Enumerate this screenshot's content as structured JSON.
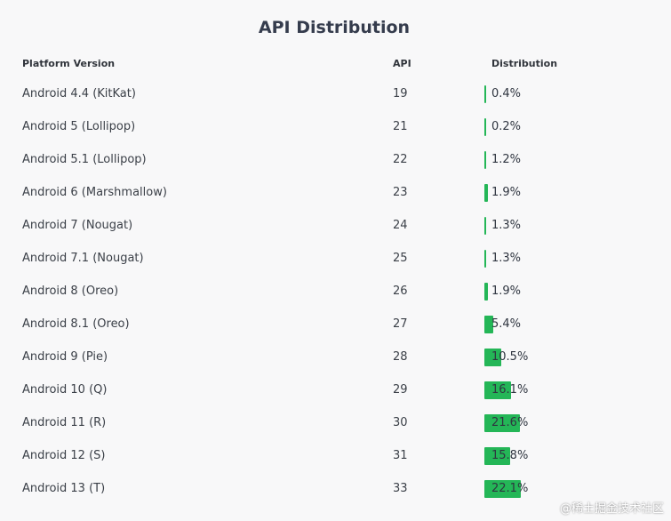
{
  "chart_data": {
    "type": "table",
    "title": "API Distribution",
    "columns": [
      "Platform Version",
      "API",
      "Distribution"
    ],
    "rows": [
      {
        "version": "Android 4.4 (KitKat)",
        "api": "19",
        "distribution": 0.4,
        "label": "0.4%"
      },
      {
        "version": "Android 5 (Lollipop)",
        "api": "21",
        "distribution": 0.2,
        "label": "0.2%"
      },
      {
        "version": "Android 5.1 (Lollipop)",
        "api": "22",
        "distribution": 1.2,
        "label": "1.2%"
      },
      {
        "version": "Android 6 (Marshmallow)",
        "api": "23",
        "distribution": 1.9,
        "label": "1.9%"
      },
      {
        "version": "Android 7 (Nougat)",
        "api": "24",
        "distribution": 1.3,
        "label": "1.3%"
      },
      {
        "version": "Android 7.1 (Nougat)",
        "api": "25",
        "distribution": 1.3,
        "label": "1.3%"
      },
      {
        "version": "Android 8 (Oreo)",
        "api": "26",
        "distribution": 1.9,
        "label": "1.9%"
      },
      {
        "version": "Android 8.1 (Oreo)",
        "api": "27",
        "distribution": 5.4,
        "label": "5.4%"
      },
      {
        "version": "Android 9 (Pie)",
        "api": "28",
        "distribution": 10.5,
        "label": "10.5%"
      },
      {
        "version": "Android 10 (Q)",
        "api": "29",
        "distribution": 16.1,
        "label": "16.1%"
      },
      {
        "version": "Android 11 (R)",
        "api": "30",
        "distribution": 21.6,
        "label": "21.6%"
      },
      {
        "version": "Android 12 (S)",
        "api": "31",
        "distribution": 15.8,
        "label": "15.8%"
      },
      {
        "version": "Android 13 (T)",
        "api": "33",
        "distribution": 22.1,
        "label": "22.1%"
      }
    ],
    "bar_color": "#24b657"
  },
  "watermark": "@稀土掘金技术社区"
}
